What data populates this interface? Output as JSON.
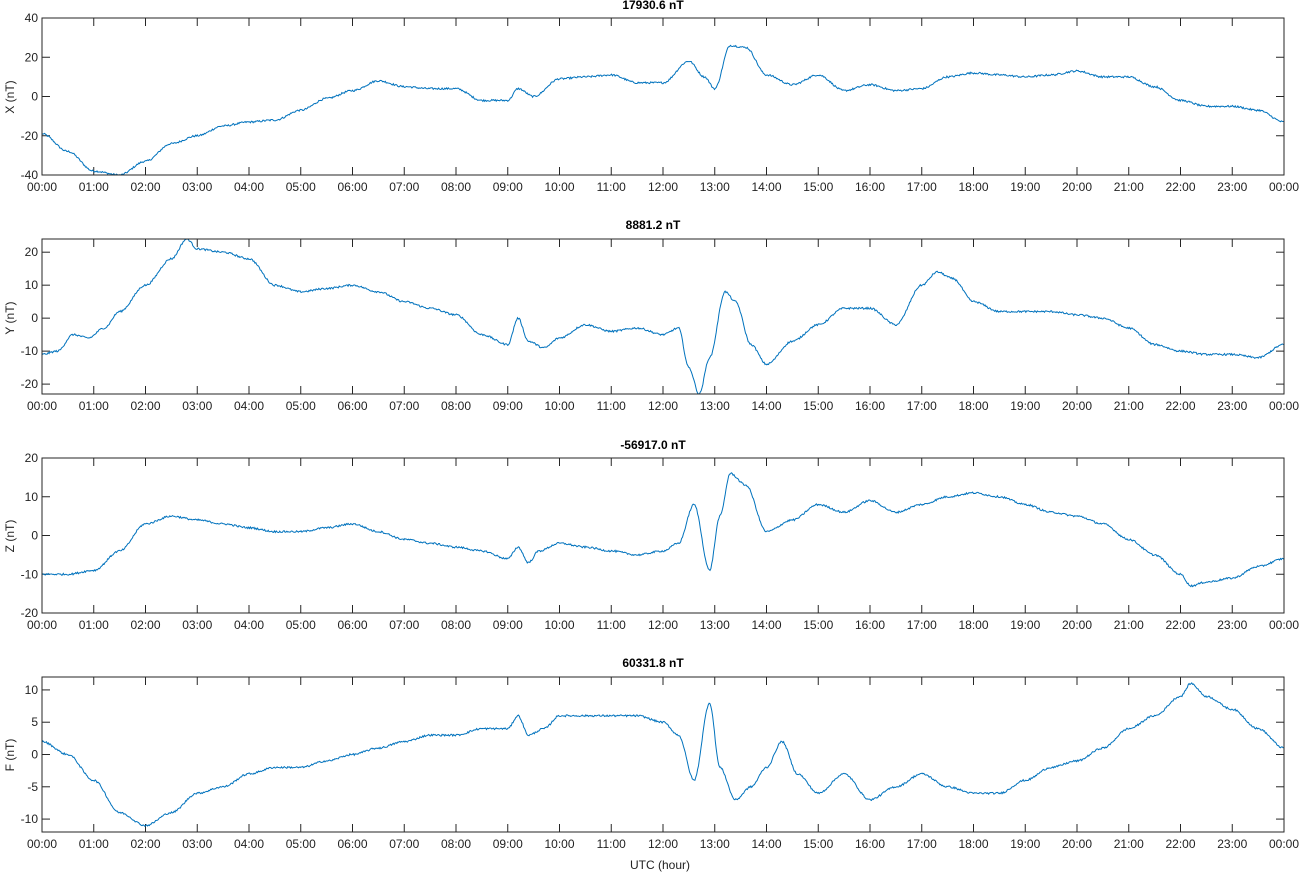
{
  "chart_data": [
    {
      "type": "line",
      "title": "17930.6 nT",
      "ylabel": "X (nT)",
      "xlabel": "",
      "xlim": [
        0,
        24
      ],
      "ylim": [
        -40,
        40
      ],
      "yticks": [
        -40,
        -20,
        0,
        20,
        40
      ],
      "xtick_labels": [
        "00:00",
        "01:00",
        "02:00",
        "03:00",
        "04:00",
        "05:00",
        "06:00",
        "07:00",
        "08:00",
        "09:00",
        "10:00",
        "11:00",
        "12:00",
        "13:00",
        "14:00",
        "15:00",
        "16:00",
        "17:00",
        "18:00",
        "19:00",
        "20:00",
        "21:00",
        "22:00",
        "23:00",
        "00:00"
      ],
      "x": [
        0,
        0.5,
        1,
        1.5,
        2,
        2.5,
        3,
        3.5,
        4,
        4.5,
        5,
        5.5,
        6,
        6.5,
        7,
        7.5,
        8,
        8.5,
        9,
        9.2,
        9.5,
        10,
        10.5,
        11,
        11.5,
        12,
        12.5,
        12.8,
        13,
        13.3,
        13.6,
        14,
        14.5,
        15,
        15.5,
        16,
        16.5,
        17,
        17.5,
        18,
        18.5,
        19,
        19.5,
        20,
        20.5,
        21,
        21.5,
        22,
        22.5,
        23,
        23.5,
        24
      ],
      "y": [
        -19,
        -28,
        -38,
        -40,
        -33,
        -24,
        -20,
        -15,
        -13,
        -12,
        -7,
        -1,
        3,
        8,
        5,
        4,
        4,
        -2,
        -2,
        4,
        0,
        9,
        10,
        11,
        7,
        7,
        18,
        10,
        4,
        26,
        25,
        11,
        6,
        11,
        3,
        6,
        3,
        4,
        10,
        12,
        11,
        10,
        11,
        13,
        10,
        10,
        5,
        -2,
        -5,
        -5,
        -7,
        -13
      ]
    },
    {
      "type": "line",
      "title": "8881.2 nT",
      "ylabel": "Y (nT)",
      "xlabel": "",
      "xlim": [
        0,
        24
      ],
      "ylim": [
        -23,
        24
      ],
      "yticks": [
        -20,
        -10,
        0,
        10,
        20
      ],
      "xtick_labels": [
        "00:00",
        "01:00",
        "02:00",
        "03:00",
        "04:00",
        "05:00",
        "06:00",
        "07:00",
        "08:00",
        "09:00",
        "10:00",
        "11:00",
        "12:00",
        "13:00",
        "14:00",
        "15:00",
        "16:00",
        "17:00",
        "18:00",
        "19:00",
        "20:00",
        "21:00",
        "22:00",
        "23:00",
        "00:00"
      ],
      "x": [
        0,
        0.3,
        0.6,
        0.9,
        1.2,
        1.5,
        2,
        2.5,
        2.8,
        3,
        3.5,
        4,
        4.5,
        5,
        5.5,
        6,
        6.5,
        7,
        7.5,
        8,
        8.5,
        9,
        9.2,
        9.4,
        9.7,
        10,
        10.5,
        11,
        11.5,
        12,
        12.3,
        12.5,
        12.7,
        12.9,
        13.2,
        13.4,
        13.7,
        14,
        14.5,
        15,
        15.5,
        16,
        16.5,
        17,
        17.3,
        17.6,
        18,
        18.5,
        19,
        19.5,
        20,
        20.5,
        21,
        21.5,
        22,
        22.5,
        23,
        23.5,
        24
      ],
      "y": [
        -11,
        -10,
        -5,
        -6,
        -3,
        2,
        10,
        18,
        24,
        21,
        20,
        18,
        10,
        8,
        9,
        10,
        8,
        5,
        3,
        1,
        -5,
        -8,
        0,
        -7,
        -9,
        -6,
        -2,
        -4,
        -3,
        -5,
        -3,
        -15,
        -23,
        -12,
        8,
        5,
        -8,
        -14,
        -7,
        -2,
        3,
        3,
        -2,
        10,
        14,
        12,
        5,
        2,
        2,
        2,
        1,
        0,
        -3,
        -8,
        -10,
        -11,
        -11,
        -12,
        -8
      ]
    },
    {
      "type": "line",
      "title": "-56917.0 nT",
      "ylabel": "Z (nT)",
      "xlabel": "",
      "xlim": [
        0,
        24
      ],
      "ylim": [
        -20,
        20
      ],
      "yticks": [
        -20,
        -10,
        0,
        10,
        20
      ],
      "xtick_labels": [
        "00:00",
        "01:00",
        "02:00",
        "03:00",
        "04:00",
        "05:00",
        "06:00",
        "07:00",
        "08:00",
        "09:00",
        "10:00",
        "11:00",
        "12:00",
        "13:00",
        "14:00",
        "15:00",
        "16:00",
        "17:00",
        "18:00",
        "19:00",
        "20:00",
        "21:00",
        "22:00",
        "23:00",
        "00:00"
      ],
      "x": [
        0,
        0.5,
        1,
        1.5,
        2,
        2.5,
        3,
        3.5,
        4,
        4.5,
        5,
        5.5,
        6,
        6.5,
        7,
        7.5,
        8,
        8.5,
        9,
        9.2,
        9.4,
        9.6,
        10,
        10.5,
        11,
        11.5,
        12,
        12.3,
        12.6,
        12.9,
        13.1,
        13.3,
        13.6,
        14,
        14.5,
        15,
        15.5,
        16,
        16.5,
        17,
        17.5,
        18,
        18.5,
        19,
        19.5,
        20,
        20.5,
        21,
        21.5,
        22,
        22.2,
        22.5,
        23,
        23.5,
        24
      ],
      "y": [
        -10,
        -10,
        -9,
        -4,
        3,
        5,
        4,
        3,
        2,
        1,
        1,
        2,
        3,
        1,
        -1,
        -2,
        -3,
        -4,
        -6,
        -3,
        -7,
        -4,
        -2,
        -3,
        -4,
        -5,
        -4,
        -2,
        8,
        -9,
        5,
        16,
        13,
        1,
        4,
        8,
        6,
        9,
        6,
        8,
        10,
        11,
        10,
        8,
        6,
        5,
        3,
        -1,
        -5,
        -10,
        -13,
        -12,
        -11,
        -8,
        -6
      ]
    },
    {
      "type": "line",
      "title": "60331.8 nT",
      "ylabel": "F (nT)",
      "xlabel": "UTC (hour)",
      "xlim": [
        0,
        24
      ],
      "ylim": [
        -12,
        12
      ],
      "yticks": [
        -10,
        -5,
        0,
        5,
        10
      ],
      "xtick_labels": [
        "00:00",
        "01:00",
        "02:00",
        "03:00",
        "04:00",
        "05:00",
        "06:00",
        "07:00",
        "08:00",
        "09:00",
        "10:00",
        "11:00",
        "12:00",
        "13:00",
        "14:00",
        "15:00",
        "16:00",
        "17:00",
        "18:00",
        "19:00",
        "20:00",
        "21:00",
        "22:00",
        "23:00",
        "00:00"
      ],
      "x": [
        0,
        0.5,
        1,
        1.5,
        2,
        2.5,
        3,
        3.5,
        4,
        4.5,
        5,
        5.5,
        6,
        6.5,
        7,
        7.5,
        8,
        8.5,
        9,
        9.2,
        9.4,
        9.7,
        10,
        10.5,
        11,
        11.5,
        12,
        12.3,
        12.6,
        12.9,
        13.1,
        13.4,
        13.7,
        14,
        14.3,
        14.6,
        15,
        15.5,
        16,
        16.5,
        17,
        17.5,
        18,
        18.5,
        19,
        19.5,
        20,
        20.5,
        21,
        21.5,
        22,
        22.2,
        22.5,
        23,
        23.5,
        24
      ],
      "y": [
        2,
        0,
        -4,
        -9,
        -11,
        -9,
        -6,
        -5,
        -3,
        -2,
        -2,
        -1,
        0,
        1,
        2,
        3,
        3,
        4,
        4,
        6,
        3,
        4,
        6,
        6,
        6,
        6,
        5,
        3,
        -4,
        8,
        -2,
        -7,
        -5,
        -2,
        2,
        -3,
        -6,
        -3,
        -7,
        -5,
        -3,
        -5,
        -6,
        -6,
        -4,
        -2,
        -1,
        1,
        4,
        6,
        9,
        11,
        9,
        7,
        4,
        1
      ]
    }
  ]
}
